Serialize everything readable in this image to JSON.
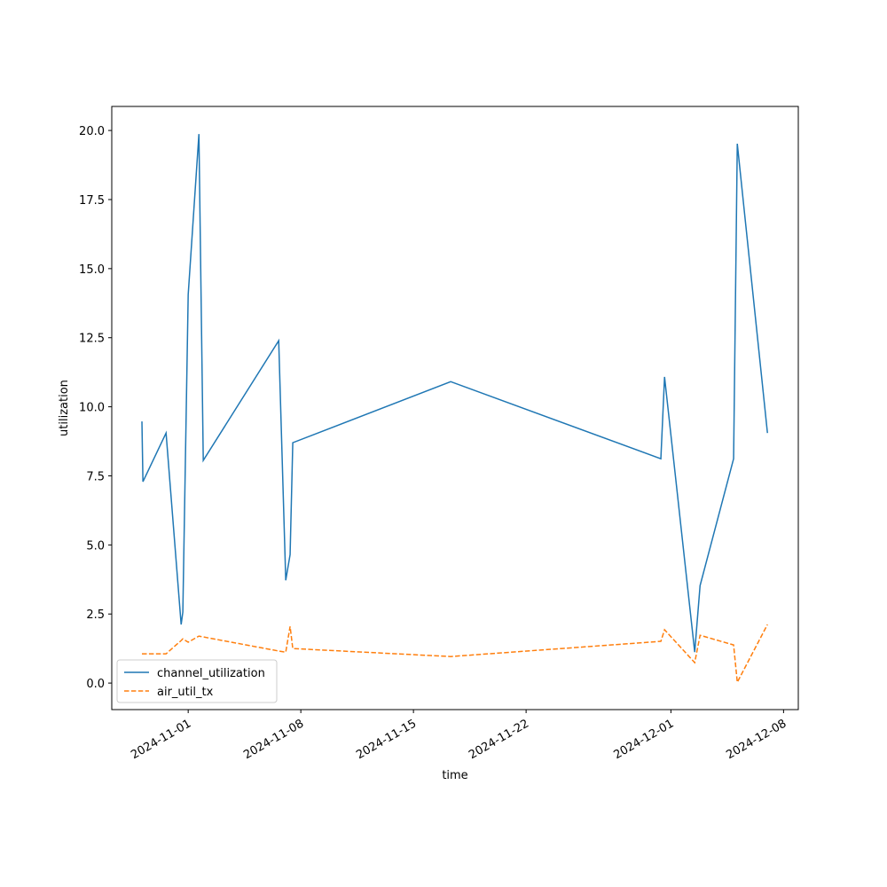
{
  "chart_data": {
    "type": "line",
    "x_label": "time",
    "y_label": "utilization",
    "x": [
      "2024-10-29T03:00",
      "2024-10-29T04:30",
      "2024-10-30T15:00",
      "2024-10-31T13:30",
      "2024-10-31T16:00",
      "2024-11-01T00:00",
      "2024-11-01T16:00",
      "2024-11-01T22:30",
      "2024-11-06T15:00",
      "2024-11-07T01:30",
      "2024-11-07T08:00",
      "2024-11-07T12:00",
      "2024-11-17T07:30",
      "2024-11-30T09:00",
      "2024-11-30T14:30",
      "2024-12-02T11:30",
      "2024-12-02T19:30",
      "2024-12-04T21:30",
      "2024-12-05T03:00",
      "2024-12-07T00:00"
    ],
    "series": [
      {
        "name": "channel_utilization",
        "color": "#1f77b4",
        "dash": "solid",
        "values": [
          9.47,
          7.29,
          9.05,
          2.12,
          2.57,
          14.06,
          19.87,
          8.06,
          12.39,
          3.72,
          4.65,
          8.7,
          10.91,
          8.12,
          11.08,
          1.12,
          3.53,
          8.12,
          19.52,
          9.05
        ]
      },
      {
        "name": "air_util_tx",
        "color": "#ff7f0e",
        "dash": "dashed",
        "values": [
          1.06,
          1.06,
          1.06,
          1.54,
          1.6,
          1.48,
          1.7,
          1.67,
          1.16,
          1.12,
          2.05,
          1.25,
          0.96,
          1.51,
          1.93,
          0.74,
          1.73,
          1.38,
          0.03,
          2.12
        ]
      }
    ],
    "xlim": [
      "2024-10-27T06:00",
      "2024-12-08T22:00"
    ],
    "xticks": [
      "2024-11-01",
      "2024-11-08",
      "2024-11-15",
      "2024-11-22",
      "2024-12-01",
      "2024-12-08"
    ],
    "ylim": [
      -0.96,
      20.87
    ],
    "yticks": [
      {
        "value": 0,
        "label": "0.0"
      },
      {
        "value": 2.5,
        "label": "2.5"
      },
      {
        "value": 5,
        "label": "5.0"
      },
      {
        "value": 7.5,
        "label": "7.5"
      },
      {
        "value": 10,
        "label": "10.0"
      },
      {
        "value": 12.5,
        "label": "12.5"
      },
      {
        "value": 15,
        "label": "15.0"
      },
      {
        "value": 17.5,
        "label": "17.5"
      },
      {
        "value": 20,
        "label": "20.0"
      }
    ],
    "legend": "lower left",
    "grid": false
  }
}
